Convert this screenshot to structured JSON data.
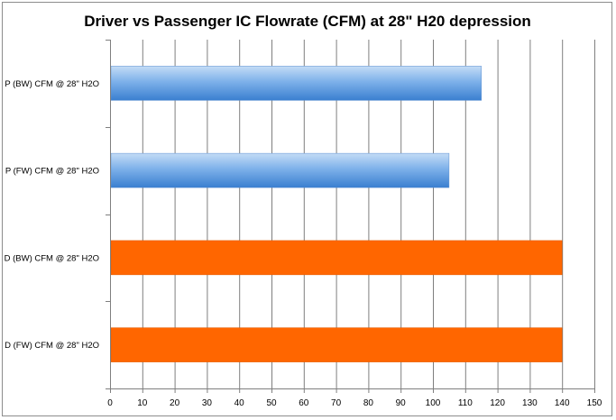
{
  "chart_data": {
    "type": "bar",
    "orientation": "horizontal",
    "title": "Driver vs Passenger IC Flowrate (CFM) at 28\" H20 depression",
    "xlabel": "",
    "ylabel": "",
    "categories": [
      "P (BW) CFM @ 28\" H2O",
      "P (FW) CFM @ 28\" H2O",
      "D (BW) CFM @ 28\" H2O",
      "D (FW) CFM @ 28\" H2O"
    ],
    "values": [
      115,
      105,
      140,
      140
    ],
    "bar_colors": [
      "#5b9bd5",
      "#5b9bd5",
      "#ff6600",
      "#ff6600"
    ],
    "xlim": [
      0,
      150
    ],
    "xticks": [
      0,
      10,
      20,
      30,
      40,
      50,
      60,
      70,
      80,
      90,
      100,
      110,
      120,
      130,
      140,
      150
    ],
    "grid": true,
    "legend": "none"
  }
}
